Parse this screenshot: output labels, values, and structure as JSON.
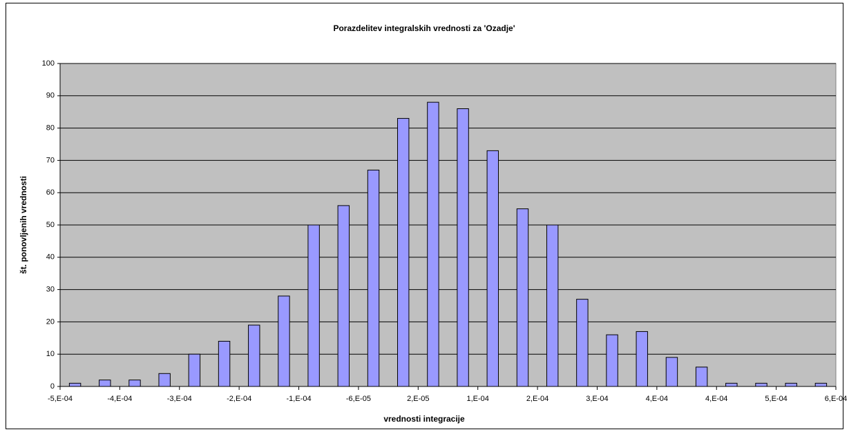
{
  "chart_data": {
    "type": "bar",
    "title": "Porazdelitev  integralskih vrednosti za 'Ozadje'",
    "x_label": "vrednosti integracije",
    "y_label": "št. ponovljenih vrednosti",
    "categories": [
      null,
      null,
      null,
      null,
      null,
      null,
      null,
      null,
      null,
      null,
      null,
      null,
      null,
      null,
      null,
      null,
      null,
      null,
      null,
      null,
      null,
      null,
      null,
      null,
      null,
      null
    ],
    "values": [
      1,
      2,
      2,
      4,
      10,
      14,
      19,
      28,
      50,
      56,
      67,
      83,
      88,
      86,
      73,
      55,
      50,
      27,
      16,
      17,
      9,
      6,
      1,
      1,
      1,
      1
    ],
    "color": "#9999ff",
    "xticks": [
      "-5,E-04",
      "-4,E-04",
      "-3,E-04",
      "-2,E-04",
      "-1,E-04",
      "-6,E-05",
      "2,E-05",
      "1,E-04",
      "2,E-04",
      "3,E-04",
      "4,E-04",
      "4,E-04",
      "5,E-04",
      "6,E-04"
    ],
    "ylim": [
      0,
      100
    ],
    "yticks": [
      0,
      10,
      20,
      30,
      40,
      50,
      60,
      70,
      80,
      90,
      100
    ],
    "grid": true
  }
}
